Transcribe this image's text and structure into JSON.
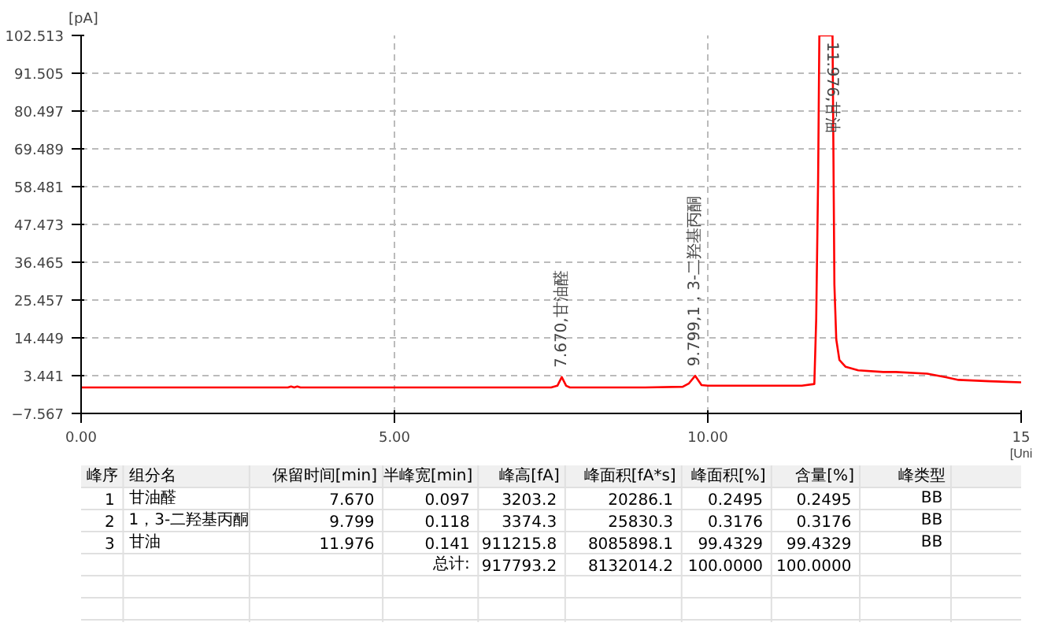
{
  "chart_data": {
    "type": "line",
    "xlabel": "[Uni",
    "ylabel": "[pA]",
    "x": [
      0,
      1,
      2,
      3,
      3.3,
      3.35,
      3.4,
      3.45,
      3.5,
      3.55,
      4,
      5,
      6,
      7,
      7.5,
      7.6,
      7.67,
      7.74,
      7.8,
      8,
      9,
      9.6,
      9.7,
      9.799,
      9.9,
      10,
      11,
      11.5,
      11.7,
      11.73,
      11.76,
      11.78,
      11.8,
      11.99,
      12.0,
      12.02,
      12.05,
      12.1,
      12.2,
      12.4,
      12.8,
      13.0,
      13.5,
      13.8,
      14.0,
      14.5,
      15.0
    ],
    "series": [
      {
        "color": "#ff0000",
        "values": [
          0,
          0,
          0,
          0,
          0,
          0.3,
          0,
          0.3,
          0,
          0,
          0,
          0,
          0,
          0,
          0,
          0.5,
          3.0,
          0.5,
          0,
          0,
          0,
          0.2,
          1.2,
          3.4,
          0.7,
          0.5,
          0.5,
          0.5,
          1.0,
          20,
          60,
          102.5,
          102.5,
          102.5,
          80,
          30,
          14,
          8,
          6,
          5,
          4.5,
          4.5,
          4.0,
          3.0,
          2.2,
          1.8,
          1.5
        ]
      }
    ],
    "xlim": [
      0,
      15
    ],
    "ylim": [
      -7.567,
      102.513
    ],
    "xticks": [
      {
        "value": 0,
        "label": "0.00"
      },
      {
        "value": 5,
        "label": "5.00"
      },
      {
        "value": 10,
        "label": "10.00"
      },
      {
        "value": 15,
        "label": "15"
      }
    ],
    "yticks": [
      -7.567,
      3.441,
      14.449,
      25.457,
      36.465,
      47.473,
      58.481,
      69.489,
      80.497,
      91.505,
      102.513
    ],
    "grid": true,
    "marker": "none",
    "line_style": "solid",
    "annotations": [
      {
        "text": "7.670,甘油醛",
        "x": 7.67,
        "y": 3.0
      },
      {
        "text": "9.799,1，3-二羟基丙酮",
        "x": 9.799,
        "y": 3.4
      },
      {
        "text": "11.976,甘油",
        "x": 11.976,
        "y": 102.5
      },
      "峰序",
      "组分名",
      "保留时间[min]",
      "半峰宽[min]",
      "峰高[fA]",
      "峰面积[fA*s]",
      "峰面积[%]",
      "含量[%]",
      "峰类型",
      "1",
      "甘油醛",
      "7.670",
      "0.097",
      "3203.2",
      "20286.1",
      "0.2495",
      "0.2495",
      "BB",
      "2",
      "1，3-二羟基丙酮",
      "9.799",
      "0.118",
      "3374.3",
      "25830.3",
      "0.3176",
      "0.3176",
      "BB",
      "3",
      "甘油",
      "11.976",
      "0.141",
      "911215.8",
      "8085898.1",
      "99.4329",
      "99.4329",
      "BB",
      "总计:",
      "917793.2",
      "8132014.2",
      "100.0000",
      "100.0000"
    ]
  }
}
